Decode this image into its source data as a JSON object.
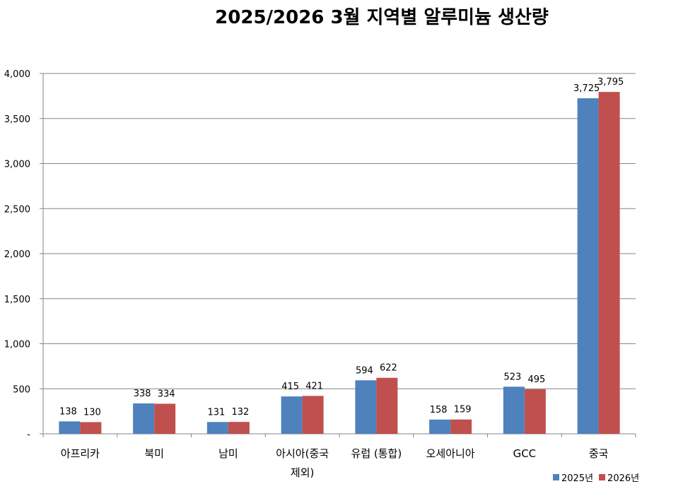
{
  "chart_data": {
    "type": "bar",
    "title": "2025/2026 3월 지역별 알루미늄 생산량",
    "categories": [
      "아프리카",
      "북미",
      "남미",
      "아시아(중국 제외)",
      "유럽 (통합)",
      "오세아니아",
      "GCC",
      "중국"
    ],
    "category_lines": [
      [
        "아프리카"
      ],
      [
        "북미"
      ],
      [
        "남미"
      ],
      [
        "아시아(중국",
        "제외)"
      ],
      [
        "유럽 (통합)"
      ],
      [
        "오세아니아"
      ],
      [
        "GCC"
      ],
      [
        "중국"
      ]
    ],
    "series": [
      {
        "name": "2025년",
        "values": [
          138,
          338,
          131,
          415,
          594,
          158,
          523,
          3725
        ],
        "labels": [
          "138",
          "338",
          "131",
          "415",
          "594",
          "158",
          "523",
          "3,725"
        ],
        "color": "#4f81bd"
      },
      {
        "name": "2026년",
        "values": [
          130,
          334,
          132,
          421,
          622,
          159,
          495,
          3795
        ],
        "labels": [
          "130",
          "334",
          "132",
          "421",
          "622",
          "159",
          "495",
          "3,795"
        ],
        "color": "#c0504d"
      }
    ],
    "ylim": [
      0,
      4000
    ],
    "yticks": [
      0,
      500,
      1000,
      1500,
      2000,
      2500,
      3000,
      3500,
      4000
    ],
    "ytick_labels": [
      "-",
      "500",
      "1,000",
      "1,500",
      "2,000",
      "2,500",
      "3,000",
      "3,500",
      "4,000"
    ],
    "grid": true,
    "legend_position": "bottom-right"
  }
}
